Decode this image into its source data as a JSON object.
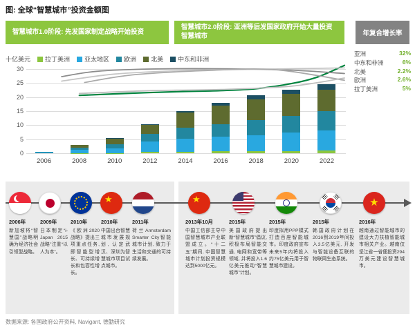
{
  "title": "图: 全球“智慧城市”投资金额图",
  "banners": {
    "phase1": "智慧城市1.0阶段: 先发国家制定战略开始投资",
    "phase2": "智慧城市2.0阶段: 亚洲等后发国家政府开始大量投资智慧城市",
    "cagr_title": "年复合增长率"
  },
  "colors": {
    "banner_green": "#8dc63f",
    "cagr_box_gray": "#838383",
    "cagr_value_green": "#6fae28",
    "asia_line_green": "#00833e"
  },
  "cagr_legend": [
    {
      "label": "亚洲",
      "value": "32%"
    },
    {
      "label": "中东和非洲",
      "value": "6%"
    },
    {
      "label": "北美",
      "value": "2.2%"
    },
    {
      "label": "欧洲",
      "value": "2.6%"
    },
    {
      "label": "拉丁美洲",
      "value": "5%"
    }
  ],
  "chart_data": {
    "type": "bar",
    "stacked": true,
    "ylabel": "十亿美元",
    "ylim": [
      0,
      30
    ],
    "ytick_step": 5,
    "grid": true,
    "legend_position": "top",
    "categories": [
      "2006",
      "2008",
      "2010",
      "2012",
      "2014",
      "2016",
      "2018",
      "2020",
      "2022"
    ],
    "series": [
      {
        "name": "拉丁美洲",
        "color": "#8cc63f",
        "values": [
          0,
          0.1,
          0.1,
          0.5,
          0.6,
          0.7,
          0.7,
          0.8,
          0.9
        ]
      },
      {
        "name": "亚太地区",
        "color": "#29a8e0",
        "values": [
          0.2,
          1.1,
          1.7,
          3.7,
          4.5,
          5.1,
          5.8,
          6.5,
          7.3
        ]
      },
      {
        "name": "欧洲",
        "color": "#22879f",
        "values": [
          0.4,
          0.8,
          1.4,
          2.8,
          4.0,
          4.6,
          5.4,
          6.0,
          6.9
        ]
      },
      {
        "name": "北美",
        "color": "#5e6b2f",
        "values": [
          0,
          1.0,
          2.0,
          3.2,
          5.5,
          6.6,
          7.4,
          7.8,
          7.5
        ]
      },
      {
        "name": "中东和非洲",
        "color": "#1c4f63",
        "values": [
          0,
          0,
          0.1,
          0.2,
          0.5,
          1.0,
          1.3,
          1.6,
          2.0
        ]
      }
    ],
    "trend_lines": [
      {
        "name": "亚洲增长曲线",
        "color": "#00833e",
        "width": 2.2,
        "points": [
          [
            2008,
            20.6
          ],
          [
            2011,
            21.4
          ],
          [
            2014,
            22.0
          ],
          [
            2016,
            22.3
          ],
          [
            2018,
            23.0
          ],
          [
            2020,
            24.8
          ],
          [
            2021.5,
            27.2
          ],
          [
            2023,
            31.3
          ]
        ]
      },
      {
        "name": "趋势线-深灰",
        "color": "#8c8c8c",
        "width": 1.8,
        "points": [
          [
            2007,
            27.3
          ],
          [
            2009,
            29.2
          ],
          [
            2012,
            30.0
          ],
          [
            2016,
            30.1
          ],
          [
            2020,
            29.6
          ],
          [
            2023,
            28.4
          ]
        ]
      },
      {
        "name": "趋势线-浅灰-上",
        "color": "#c6c6c6",
        "width": 1.8,
        "points": [
          [
            2007,
            25.7
          ],
          [
            2010,
            28.2
          ],
          [
            2014,
            29.5
          ],
          [
            2018,
            29.9
          ],
          [
            2023,
            30.4
          ]
        ]
      },
      {
        "name": "趋势线-中灰",
        "color": "#aaaaaa",
        "width": 1.8,
        "points": [
          [
            2008.3,
            25.2
          ],
          [
            2011,
            27.9
          ],
          [
            2015,
            29.4
          ],
          [
            2019,
            29.8
          ],
          [
            2023,
            26.0
          ]
        ]
      },
      {
        "name": "趋势线-浅灰-下",
        "color": "#bfbfbf",
        "width": 1.8,
        "points": [
          [
            2008,
            21.3
          ],
          [
            2012,
            22.3
          ],
          [
            2016,
            22.7
          ],
          [
            2020,
            23.9
          ],
          [
            2023,
            26.8
          ]
        ]
      }
    ]
  },
  "timeline": {
    "items": [
      {
        "year": "2006年",
        "flag": "singapore",
        "country": "新加坡",
        "text": "新加坡将“智慧国”战略明确为经济社会引领型战略。"
      },
      {
        "year": "2009年",
        "flag": "japan",
        "country": "日本",
        "text": "日本制定“i-Japan 2015战略”注重“以人为本”。"
      },
      {
        "year": "2010年",
        "flag": "eu",
        "country": "欧盟",
        "text": "《欧洲2020战略》提出三项重点任务, 即智能型增长、可持续增长和包容性增长。"
      },
      {
        "year": "2010年",
        "flag": "china",
        "country": "中国",
        "text": "中国出台智慧城市发展规划, 认定武汉、深圳为智慧城市项目试点城市。"
      },
      {
        "year": "2011年",
        "flag": "netherlands",
        "country": "荷兰",
        "text": "荷兰Armsterdam Smarter City智能城市计划, 致力于生活和交通的可持续发展。"
      },
      {
        "year": "2013年10月",
        "flag": "china",
        "country": "中国",
        "text": "中国工信部主导中国智慧城市产业联盟成立。“十二五”期间, 中国智慧城市计划投资规模达到5000亿元。"
      },
      {
        "year": "2015年",
        "flag": "usa",
        "country": "美国",
        "text": "美国政府提出新“智慧城市”倡议, 积极布局智能交通, 电网和宽带等领域, 并将投入1.6亿美元推动“智慧城市”计划。"
      },
      {
        "year": "2015年",
        "flag": "india",
        "country": "印度",
        "text": "印度拟用PPP模式打造百座智能城市。印度政府宣布未来5年内将投入约75亿美元用于智慧城市建设。"
      },
      {
        "year": "2015年",
        "flag": "korea",
        "country": "韩国",
        "text": "韩国政府计划在2016到2019年间投入3.5亿美元, 开发与智能设备互联的物联网生态系统。"
      },
      {
        "year": "2016年",
        "flag": "vietnam",
        "country": "越南",
        "text": "越南通过智能城市的建设大力扶植智能城市相关产业。越南仅坚江省一省便投资294万美元建设智慧城市。"
      }
    ]
  },
  "source": "数据来源: 各国政府公开资料, Navigant, 德勤研究"
}
